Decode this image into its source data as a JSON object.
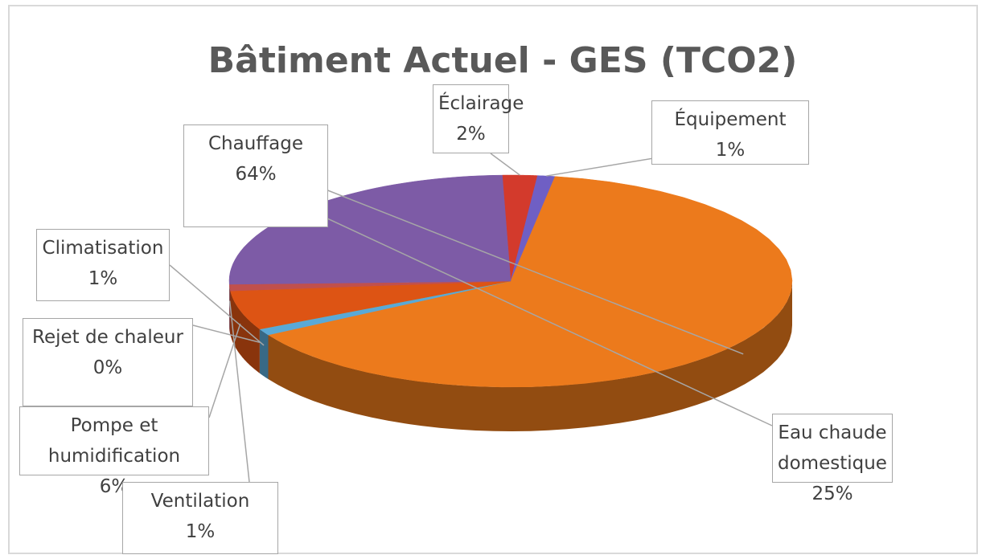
{
  "chart_data": {
    "type": "pie",
    "title": "Bâtiment Actuel - GES (TCO2)",
    "categories": [
      "Éclairage",
      "Équipement",
      "Chauffage",
      "Climatisation",
      "Rejet de chaleur",
      "Pompe et humidification",
      "Ventilation",
      "Eau chaude domestique"
    ],
    "values": [
      2,
      1,
      64,
      1,
      0,
      6,
      1,
      25
    ],
    "value_labels": [
      "2%",
      "1%",
      "64%",
      "1%",
      "0%",
      "6%",
      "1%",
      "25%"
    ],
    "colors": [
      "#d33a2c",
      "#6f5fc4",
      "#ec7a1c",
      "#5aa9d6",
      "#8fb24b",
      "#dd5414",
      "#c0504d",
      "#7d5ba6"
    ]
  }
}
